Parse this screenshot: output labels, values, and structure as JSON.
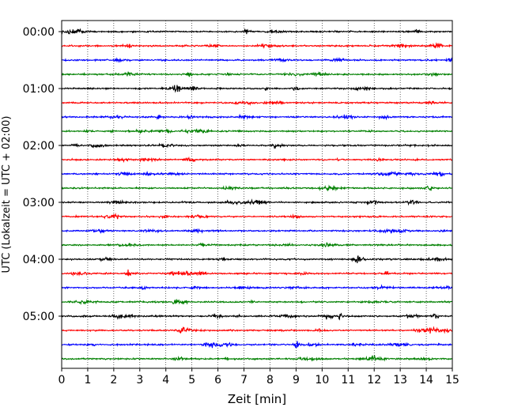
{
  "chart_data": {
    "type": "line",
    "title": "",
    "xlabel": "Zeit  [min]",
    "ylabel": "UTC (Lokalzeit = UTC + 02:00)",
    "xlim": [
      0,
      15
    ],
    "x_ticks": [
      0,
      1,
      2,
      3,
      4,
      5,
      6,
      7,
      8,
      9,
      10,
      11,
      12,
      13,
      14,
      15
    ],
    "x_tick_labels": [
      "0",
      "1",
      "2",
      "3",
      "4",
      "5",
      "6",
      "7",
      "8",
      "9",
      "10",
      "11",
      "12",
      "13",
      "14",
      "15"
    ],
    "y_tick_labels": [
      "00:00",
      "01:00",
      "02:00",
      "03:00",
      "04:00",
      "05:00"
    ],
    "y_tick_rows": [
      0,
      4,
      8,
      12,
      16,
      20
    ],
    "grid": "vertical dotted",
    "trace_count": 24,
    "trace_minutes_each": 15,
    "trace_colors": [
      "#000000",
      "#ff0000",
      "#0000ff",
      "#008000"
    ],
    "notable_events_min": [
      {
        "row": 0,
        "x": 7.1
      },
      {
        "row": 17,
        "x": 2.55
      },
      {
        "row": 20,
        "x": 10.7
      },
      {
        "row": 22,
        "x": 9.0
      }
    ]
  }
}
